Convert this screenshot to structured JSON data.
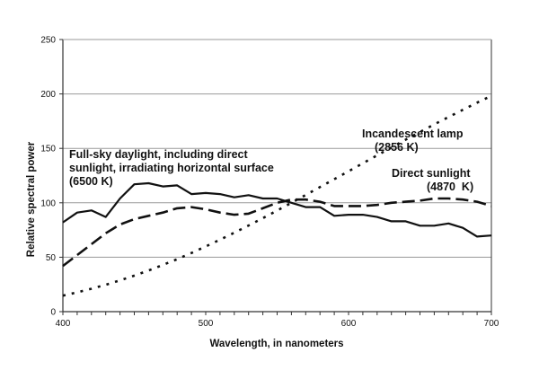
{
  "chart_data": {
    "type": "line",
    "xlabel": "Wavelength, in nanometers",
    "ylabel": "Relative spectral power",
    "xlim": [
      400,
      700
    ],
    "ylim": [
      0,
      250
    ],
    "xticks": [
      400,
      500,
      600,
      700
    ],
    "yticks": [
      0,
      50,
      100,
      150,
      200,
      250
    ],
    "grid": "horizontal",
    "legend": "none (curves labeled directly)",
    "x": [
      400,
      410,
      420,
      430,
      440,
      450,
      460,
      470,
      480,
      490,
      500,
      510,
      520,
      530,
      540,
      550,
      560,
      570,
      580,
      590,
      600,
      610,
      620,
      630,
      640,
      650,
      660,
      670,
      680,
      690,
      700
    ],
    "series": [
      {
        "name": "Full-sky daylight, including direct sunlight, irradiating horizontal surface (6500 K)",
        "style": "solid",
        "values": [
          82,
          91,
          93,
          87,
          104,
          117,
          118,
          115,
          116,
          108,
          109,
          108,
          105,
          107,
          104,
          104,
          100,
          96,
          96,
          88,
          89,
          89,
          87,
          83,
          83,
          79,
          79,
          81,
          77,
          69,
          70
        ]
      },
      {
        "name": "Direct sunlight (4870 K)",
        "style": "dashed",
        "values": [
          42,
          52,
          62,
          72,
          80,
          85,
          88,
          91,
          95,
          96,
          94,
          91,
          89,
          90,
          95,
          100,
          103,
          103,
          101,
          97,
          97,
          97,
          98,
          100,
          101,
          102,
          104,
          104,
          103,
          101,
          97
        ]
      },
      {
        "name": "Incandescent lamp (2856 K)",
        "style": "dotted",
        "values": [
          14.7,
          17.7,
          21.0,
          24.7,
          28.7,
          33.1,
          37.8,
          42.9,
          48.2,
          53.9,
          59.9,
          66.1,
          72.5,
          79.1,
          85.9,
          92.9,
          100,
          107.2,
          114.4,
          121.7,
          129.0,
          136.3,
          143.6,
          150.8,
          158.0,
          165.0,
          172.0,
          178.8,
          185.4,
          192.0,
          198.3
        ]
      }
    ],
    "annotations": {
      "daylight": [
        "Full-sky daylight, including direct",
        "sunlight, irradiating horizontal surface",
        "(6500 K)"
      ],
      "incandescent": [
        "Incandescent lamp",
        "(2856 K)"
      ],
      "sunlight": [
        "Direct sunlight",
        "(4870  K)"
      ]
    },
    "color": "#111111"
  }
}
